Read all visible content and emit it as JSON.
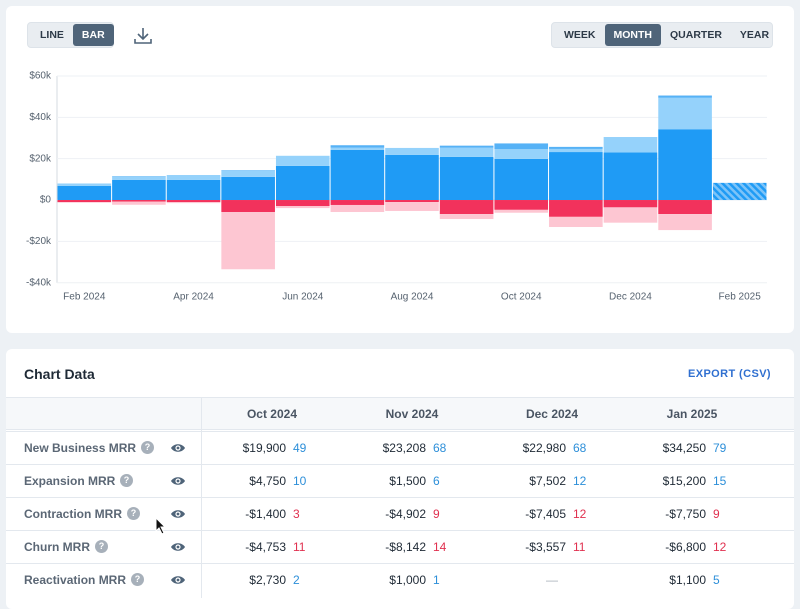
{
  "toolbar": {
    "chart_types": [
      "LINE",
      "BAR"
    ],
    "active_chart_type": "BAR",
    "periods": [
      "WEEK",
      "MONTH",
      "QUARTER",
      "YEAR"
    ],
    "active_period": "MONTH"
  },
  "chart_data": {
    "type": "bar",
    "stacked": true,
    "categories": [
      "Feb 2024",
      null,
      "Apr 2024",
      null,
      "Jun 2024",
      null,
      "Aug 2024",
      null,
      "Oct 2024",
      null,
      "Dec 2024",
      null,
      "Feb 2025"
    ],
    "series": [
      {
        "color": "#1f9bf5",
        "values": [
          6800,
          9700,
          9700,
          11200,
          16500,
          24300,
          21800,
          20900,
          19900,
          23208,
          22980,
          34250,
          null
        ]
      },
      {
        "color": "#95d2fb",
        "values": [
          1200,
          1500,
          2400,
          2900,
          4900,
          1000,
          3400,
          4400,
          4750,
          1500,
          7502,
          15200,
          null
        ]
      },
      {
        "color": "#56b2f6",
        "values": [
          0,
          300,
          0,
          300,
          0,
          1200,
          0,
          1000,
          2730,
          1000,
          null,
          1100,
          null
        ]
      },
      {
        "color": "#f2325c",
        "values": [
          -1000,
          -800,
          -1000,
          -5800,
          -2900,
          -2400,
          -1000,
          -6800,
          -4753,
          -8142,
          -3557,
          -6800,
          null
        ]
      },
      {
        "color": "#fdc6d2",
        "values": [
          -300,
          -1500,
          -500,
          -27700,
          -1000,
          -3400,
          -4300,
          -2400,
          -1400,
          -4902,
          -7405,
          -7750,
          null
        ]
      }
    ],
    "forecast": {
      "color": "#1f9bf5",
      "hatch": true,
      "values": [
        null,
        null,
        null,
        null,
        null,
        null,
        null,
        null,
        null,
        null,
        null,
        null,
        8300
      ]
    },
    "ylim": [
      -40000,
      60000
    ],
    "yticks": [
      {
        "value": -40000,
        "label": "-$40k"
      },
      {
        "value": -20000,
        "label": "-$20k"
      },
      {
        "value": 0,
        "label": "$0"
      },
      {
        "value": 20000,
        "label": "$20k"
      },
      {
        "value": 40000,
        "label": "$40k"
      },
      {
        "value": 60000,
        "label": "$60k"
      }
    ],
    "grid": true
  },
  "table": {
    "title": "Chart Data",
    "export": "EXPORT (CSV)",
    "columns": [
      "Oct 2024",
      "Nov 2024",
      "Dec 2024",
      "Jan 2025"
    ],
    "rows": [
      {
        "label": "New Business MRR",
        "cells": [
          {
            "amount": "$19,900",
            "count": 49
          },
          {
            "amount": "$23,208",
            "count": 68
          },
          {
            "amount": "$22,980",
            "count": 68
          },
          {
            "amount": "$34,250",
            "count": 79
          }
        ]
      },
      {
        "label": "Expansion MRR",
        "cells": [
          {
            "amount": "$4,750",
            "count": 10
          },
          {
            "amount": "$1,500",
            "count": 6
          },
          {
            "amount": "$7,502",
            "count": 12
          },
          {
            "amount": "$15,200",
            "count": 15
          }
        ]
      },
      {
        "label": "Contraction MRR",
        "cells": [
          {
            "amount": "-$1,400",
            "count": 3
          },
          {
            "amount": "-$4,902",
            "count": 9
          },
          {
            "amount": "-$7,405",
            "count": 12
          },
          {
            "amount": "-$7,750",
            "count": 9
          }
        ]
      },
      {
        "label": "Churn MRR",
        "cells": [
          {
            "amount": "-$4,753",
            "count": 11
          },
          {
            "amount": "-$8,142",
            "count": 14
          },
          {
            "amount": "-$3,557",
            "count": 11
          },
          {
            "amount": "-$6,800",
            "count": 12
          }
        ]
      },
      {
        "label": "Reactivation MRR",
        "cells": [
          {
            "amount": "$2,730",
            "count": 2
          },
          {
            "amount": "$1,000",
            "count": 1
          },
          {
            "amount": "—"
          },
          {
            "amount": "$1,100",
            "count": 5
          }
        ]
      }
    ]
  }
}
